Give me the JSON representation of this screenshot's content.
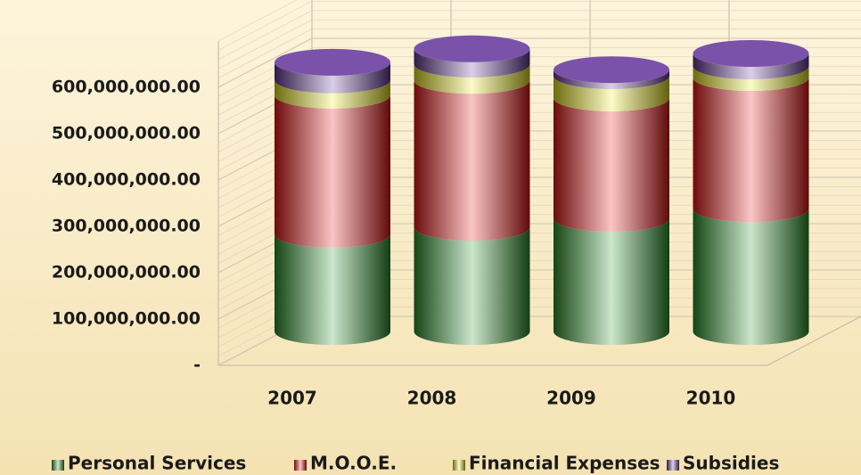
{
  "chart_data": {
    "type": "bar",
    "categories": [
      "2007",
      "2008",
      "2009",
      "2010"
    ],
    "series": [
      {
        "name": "Personal Services",
        "color": "#2f9a2f",
        "values": [
          210000000,
          225000000,
          244000000,
          265000000
        ]
      },
      {
        "name": "M.O.O.E.",
        "color": "#f01818",
        "values": [
          300000000,
          317000000,
          260000000,
          283000000
        ]
      },
      {
        "name": "Financial Expenses",
        "color": "#f4f020",
        "values": [
          33000000,
          35000000,
          48000000,
          25000000
        ]
      },
      {
        "name": "Subsidies",
        "color": "#6b3fa0",
        "values": [
          38000000,
          33000000,
          13000000,
          27000000
        ]
      }
    ],
    "stacked": true,
    "ylim": [
      0,
      700000000
    ],
    "yticks": [
      {
        "value": 0,
        "label": "-"
      },
      {
        "value": 100000000,
        "label": "100,000,000.00"
      },
      {
        "value": 200000000,
        "label": "200,000,000.00"
      },
      {
        "value": 300000000,
        "label": "300,000,000.00"
      },
      {
        "value": 400000000,
        "label": "400,000,000.00"
      },
      {
        "value": 500000000,
        "label": "500,000,000.00"
      },
      {
        "value": 600000000,
        "label": "600,000,000.00"
      }
    ],
    "grid": true,
    "legend": "bottom"
  }
}
